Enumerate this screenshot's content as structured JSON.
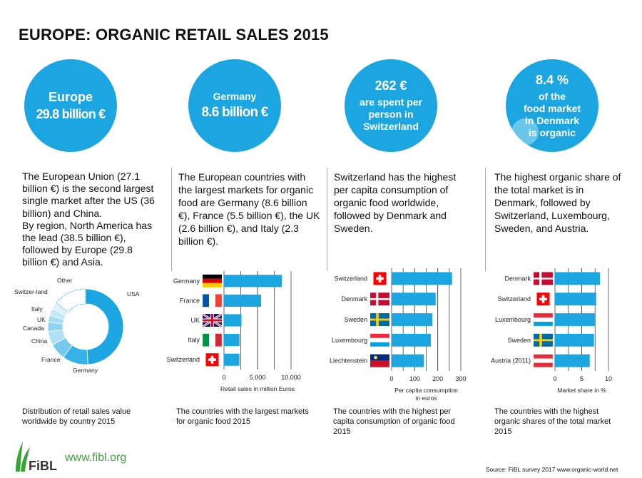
{
  "title": "EUROPE: ORGANIC RETAIL SALES 2015",
  "colors": {
    "accent": "#1ba6e1",
    "fibl_green": "#3aa335"
  },
  "circles": [
    {
      "line1": "Europe",
      "line2": "29.8 billion €"
    },
    {
      "line1": "Germany",
      "line2": "8.6 billion €"
    },
    {
      "line1": "262 €",
      "lines": [
        "are spent per",
        "person in",
        "Switzerland"
      ]
    },
    {
      "line1": "8.4 %",
      "lines": [
        "of  the",
        "food market",
        "in Denmark",
        "is organic"
      ]
    }
  ],
  "descriptions": [
    "The European Union (27.1 billion €) is the second largest single market after the US (36 billion)  and China.",
    "By region, North America has the lead (38.5 billion €), followed by Europe (29.8 billion €) and Asia.",
    "The European countries with the largest markets for organic food are Germany (8.6 billion €), France (5.5 billion €), the UK (2.6 billion €), and Italy  (2.3 billion €).",
    "Switzerland has the highest per capita consumption of organic food worldwide, followed by Denmark and Sweden.",
    "The highest organic share of the total market is in Denmark, followed by Switzerland, Luxembourg, Sweden, and Austria."
  ],
  "captions": [
    "Distribution of retail sales value worldwide by country 2015",
    "The countries with the largest markets for organic food  2015",
    "The countries with the highest per capita consumption of organic food 2015",
    "The countries with  the highest organic shares of the total market  2015"
  ],
  "footer": {
    "logo_text": "FiBL",
    "url": "www.fibl.org",
    "source": "Source: FiBL survey 2017  www.organic-world.net"
  },
  "chart_data": [
    {
      "type": "pie",
      "variant": "donut",
      "title": "Distribution of retail sales value worldwide by country 2015",
      "categories": [
        "USA",
        "Germany",
        "France",
        "China",
        "Canada",
        "UK",
        "Italy",
        "Switzer-land",
        "Other"
      ],
      "values": [
        49,
        11,
        7,
        6,
        4,
        3,
        3,
        3,
        14
      ]
    },
    {
      "type": "bar",
      "orientation": "horizontal",
      "title": "The countries with the largest markets for organic food  2015",
      "categories": [
        "Germany",
        "France",
        "UK",
        "Italy",
        "Switzerland"
      ],
      "flags": [
        "de",
        "fr",
        "uk",
        "it",
        "ch"
      ],
      "values": [
        8620,
        5534,
        2607,
        2317,
        2300
      ],
      "xlabel": "Retail sales in million Euros",
      "xlim": [
        0,
        10000
      ],
      "ticks": [
        "0",
        "5.000",
        "10.000"
      ]
    },
    {
      "type": "bar",
      "orientation": "horizontal",
      "title": "The countries with the highest per capita consumption of organic food 2015",
      "categories": [
        "Switzerland",
        "Denmark",
        "Sweden",
        "Luxembourg",
        "Liechtenstein"
      ],
      "flags": [
        "ch",
        "dk",
        "se",
        "lu",
        "li"
      ],
      "values": [
        262,
        191,
        177,
        170,
        140
      ],
      "xlabel_lines": [
        "Per capita consumption",
        "in euros"
      ],
      "xlim": [
        0,
        300
      ],
      "ticks": [
        "0",
        "100",
        "200",
        "300"
      ]
    },
    {
      "type": "bar",
      "orientation": "horizontal",
      "title": "The countries with  the highest organic shares of the total market  2015",
      "categories": [
        "Denmark",
        "Switzerland",
        "Luxembourg",
        "Sweden",
        "Austria (2011)"
      ],
      "flags": [
        "dk",
        "ch",
        "lu",
        "se",
        "at"
      ],
      "values": [
        8.4,
        7.7,
        7.5,
        7.3,
        6.5
      ],
      "xlabel": "Market share in %",
      "xlim": [
        0,
        10
      ],
      "ticks": [
        "0",
        "5",
        "10"
      ]
    }
  ]
}
